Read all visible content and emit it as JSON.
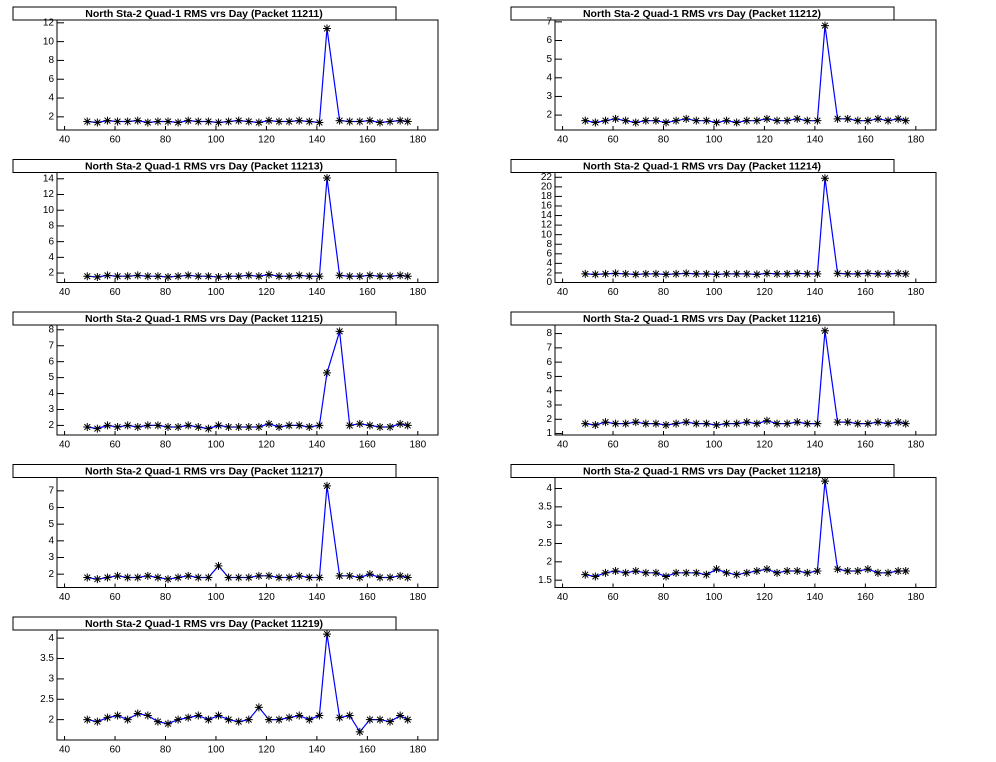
{
  "chart_data": [
    {
      "type": "line",
      "title": "North Sta-2 Quad-1 RMS vrs Day (Packet 11211)",
      "color": "#0000ff",
      "marker_color": "#000000",
      "x": [
        49,
        53,
        57,
        61,
        65,
        69,
        73,
        77,
        81,
        85,
        89,
        93,
        97,
        101,
        105,
        109,
        113,
        117,
        121,
        125,
        129,
        133,
        137,
        141,
        144,
        149,
        153,
        157,
        161,
        165,
        169,
        173,
        176
      ],
      "values": [
        1.5,
        1.4,
        1.6,
        1.5,
        1.5,
        1.6,
        1.4,
        1.5,
        1.5,
        1.4,
        1.6,
        1.5,
        1.5,
        1.4,
        1.5,
        1.6,
        1.5,
        1.4,
        1.6,
        1.5,
        1.5,
        1.6,
        1.5,
        1.4,
        11.4,
        1.6,
        1.5,
        1.5,
        1.6,
        1.4,
        1.5,
        1.6,
        1.5
      ],
      "xlim": [
        37,
        188
      ],
      "ylim": [
        0.6,
        12.3
      ],
      "xticks": [
        40,
        60,
        80,
        100,
        120,
        140,
        160,
        180
      ],
      "yticks": [
        2,
        4,
        6,
        8,
        10,
        12
      ]
    },
    {
      "type": "line",
      "title": "North Sta-2 Quad-1 RMS vrs Day (Packet 11212)",
      "color": "#0000ff",
      "marker_color": "#000000",
      "x": [
        49,
        53,
        57,
        61,
        65,
        69,
        73,
        77,
        81,
        85,
        89,
        93,
        97,
        101,
        105,
        109,
        113,
        117,
        121,
        125,
        129,
        133,
        137,
        141,
        144,
        149,
        153,
        157,
        161,
        165,
        169,
        173,
        176
      ],
      "values": [
        1.7,
        1.6,
        1.7,
        1.8,
        1.7,
        1.6,
        1.7,
        1.7,
        1.6,
        1.7,
        1.8,
        1.7,
        1.7,
        1.6,
        1.7,
        1.6,
        1.7,
        1.7,
        1.8,
        1.7,
        1.7,
        1.8,
        1.7,
        1.7,
        6.8,
        1.8,
        1.8,
        1.7,
        1.7,
        1.8,
        1.7,
        1.8,
        1.7
      ],
      "xlim": [
        37,
        188
      ],
      "ylim": [
        1.2,
        7.1
      ],
      "xticks": [
        40,
        60,
        80,
        100,
        120,
        140,
        160,
        180
      ],
      "yticks": [
        2,
        3,
        4,
        5,
        6,
        7
      ]
    },
    {
      "type": "line",
      "title": "North Sta-2 Quad-1 RMS vrs Day (Packet 11213)",
      "color": "#0000ff",
      "marker_color": "#000000",
      "x": [
        49,
        53,
        57,
        61,
        65,
        69,
        73,
        77,
        81,
        85,
        89,
        93,
        97,
        101,
        105,
        109,
        113,
        117,
        121,
        125,
        129,
        133,
        137,
        141,
        144,
        149,
        153,
        157,
        161,
        165,
        169,
        173,
        176
      ],
      "values": [
        1.6,
        1.5,
        1.7,
        1.6,
        1.6,
        1.7,
        1.6,
        1.6,
        1.5,
        1.6,
        1.7,
        1.6,
        1.6,
        1.5,
        1.6,
        1.6,
        1.7,
        1.6,
        1.8,
        1.6,
        1.6,
        1.7,
        1.6,
        1.6,
        14.1,
        1.7,
        1.6,
        1.6,
        1.7,
        1.6,
        1.6,
        1.7,
        1.6
      ],
      "xlim": [
        37,
        188
      ],
      "ylim": [
        0.8,
        14.8
      ],
      "xticks": [
        40,
        60,
        80,
        100,
        120,
        140,
        160,
        180
      ],
      "yticks": [
        2,
        4,
        6,
        8,
        10,
        12,
        14
      ]
    },
    {
      "type": "line",
      "title": "North Sta-2 Quad-1 RMS vrs Day (Packet 11214)",
      "color": "#0000ff",
      "marker_color": "#000000",
      "x": [
        49,
        53,
        57,
        61,
        65,
        69,
        73,
        77,
        81,
        85,
        89,
        93,
        97,
        101,
        105,
        109,
        113,
        117,
        121,
        125,
        129,
        133,
        137,
        141,
        144,
        149,
        153,
        157,
        161,
        165,
        169,
        173,
        176
      ],
      "values": [
        1.8,
        1.7,
        1.8,
        1.9,
        1.8,
        1.7,
        1.8,
        1.8,
        1.7,
        1.8,
        1.9,
        1.8,
        1.8,
        1.7,
        1.8,
        1.8,
        1.8,
        1.7,
        1.9,
        1.8,
        1.8,
        1.9,
        1.8,
        1.8,
        21.8,
        1.9,
        1.8,
        1.8,
        1.9,
        1.8,
        1.8,
        1.9,
        1.8
      ],
      "xlim": [
        37,
        188
      ],
      "ylim": [
        0,
        23
      ],
      "xticks": [
        40,
        60,
        80,
        100,
        120,
        140,
        160,
        180
      ],
      "yticks": [
        0,
        2,
        4,
        6,
        8,
        10,
        12,
        14,
        16,
        18,
        20,
        22
      ]
    },
    {
      "type": "line",
      "title": "North Sta-2 Quad-1 RMS vrs Day (Packet 11215)",
      "color": "#0000ff",
      "marker_color": "#000000",
      "x": [
        49,
        53,
        57,
        61,
        65,
        69,
        73,
        77,
        81,
        85,
        89,
        93,
        97,
        101,
        105,
        109,
        113,
        117,
        121,
        125,
        129,
        133,
        137,
        141,
        144,
        149,
        153,
        157,
        161,
        165,
        169,
        173,
        176
      ],
      "values": [
        1.9,
        1.8,
        2.0,
        1.9,
        2.0,
        1.9,
        2.0,
        2.0,
        1.9,
        1.9,
        2.0,
        1.9,
        1.8,
        2.0,
        1.9,
        1.9,
        1.9,
        1.9,
        2.1,
        1.9,
        2.0,
        2.0,
        1.9,
        2.0,
        5.3,
        7.9,
        2.0,
        2.1,
        2.0,
        1.9,
        1.9,
        2.1,
        2.0
      ],
      "xlim": [
        37,
        188
      ],
      "ylim": [
        1.4,
        8.3
      ],
      "xticks": [
        40,
        60,
        80,
        100,
        120,
        140,
        160,
        180
      ],
      "yticks": [
        2,
        3,
        4,
        5,
        6,
        7,
        8
      ]
    },
    {
      "type": "line",
      "title": "North Sta-2 Quad-1 RMS vrs Day (Packet 11216)",
      "color": "#0000ff",
      "marker_color": "#000000",
      "x": [
        49,
        53,
        57,
        61,
        65,
        69,
        73,
        77,
        81,
        85,
        89,
        93,
        97,
        101,
        105,
        109,
        113,
        117,
        121,
        125,
        129,
        133,
        137,
        141,
        144,
        149,
        153,
        157,
        161,
        165,
        169,
        173,
        176
      ],
      "values": [
        1.7,
        1.6,
        1.8,
        1.7,
        1.7,
        1.8,
        1.7,
        1.7,
        1.6,
        1.7,
        1.8,
        1.7,
        1.7,
        1.6,
        1.7,
        1.7,
        1.8,
        1.7,
        1.9,
        1.7,
        1.7,
        1.8,
        1.7,
        1.7,
        8.2,
        1.8,
        1.8,
        1.7,
        1.7,
        1.8,
        1.7,
        1.8,
        1.7
      ],
      "xlim": [
        37,
        188
      ],
      "ylim": [
        0.9,
        8.6
      ],
      "xticks": [
        40,
        60,
        80,
        100,
        120,
        140,
        160,
        180
      ],
      "yticks": [
        1,
        2,
        3,
        4,
        5,
        6,
        7,
        8
      ]
    },
    {
      "type": "line",
      "title": "North Sta-2 Quad-1 RMS vrs Day (Packet 11217)",
      "color": "#0000ff",
      "marker_color": "#000000",
      "x": [
        49,
        53,
        57,
        61,
        65,
        69,
        73,
        77,
        81,
        85,
        89,
        93,
        97,
        101,
        105,
        109,
        113,
        117,
        121,
        125,
        129,
        133,
        137,
        141,
        144,
        149,
        153,
        157,
        161,
        165,
        169,
        173,
        176
      ],
      "values": [
        1.8,
        1.7,
        1.8,
        1.9,
        1.8,
        1.8,
        1.9,
        1.8,
        1.7,
        1.8,
        1.9,
        1.8,
        1.8,
        2.5,
        1.8,
        1.8,
        1.8,
        1.9,
        1.9,
        1.8,
        1.8,
        1.9,
        1.8,
        1.8,
        7.3,
        1.9,
        1.9,
        1.8,
        2.0,
        1.8,
        1.8,
        1.9,
        1.8
      ],
      "xlim": [
        37,
        188
      ],
      "ylim": [
        1.2,
        7.8
      ],
      "xticks": [
        40,
        60,
        80,
        100,
        120,
        140,
        160,
        180
      ],
      "yticks": [
        2,
        3,
        4,
        5,
        6,
        7
      ]
    },
    {
      "type": "line",
      "title": "North Sta-2 Quad-1 RMS vrs Day (Packet 11218)",
      "color": "#0000ff",
      "marker_color": "#000000",
      "x": [
        49,
        53,
        57,
        61,
        65,
        69,
        73,
        77,
        81,
        85,
        89,
        93,
        97,
        101,
        105,
        109,
        113,
        117,
        121,
        125,
        129,
        133,
        137,
        141,
        144,
        149,
        153,
        157,
        161,
        165,
        169,
        173,
        176
      ],
      "values": [
        1.65,
        1.6,
        1.7,
        1.75,
        1.7,
        1.75,
        1.7,
        1.7,
        1.6,
        1.7,
        1.7,
        1.7,
        1.65,
        1.8,
        1.7,
        1.65,
        1.7,
        1.75,
        1.8,
        1.7,
        1.75,
        1.75,
        1.7,
        1.75,
        4.2,
        1.8,
        1.75,
        1.75,
        1.8,
        1.7,
        1.7,
        1.75,
        1.75
      ],
      "xlim": [
        37,
        188
      ],
      "ylim": [
        1.3,
        4.3
      ],
      "xticks": [
        40,
        60,
        80,
        100,
        120,
        140,
        160,
        180
      ],
      "yticks": [
        1.5,
        2,
        2.5,
        3,
        3.5,
        4
      ]
    },
    {
      "type": "line",
      "title": "North Sta-2 Quad-1 RMS vrs Day (Packet 11219)",
      "color": "#0000ff",
      "marker_color": "#000000",
      "x": [
        49,
        53,
        57,
        61,
        65,
        69,
        73,
        77,
        81,
        85,
        89,
        93,
        97,
        101,
        105,
        109,
        113,
        117,
        121,
        125,
        129,
        133,
        137,
        141,
        144,
        149,
        153,
        157,
        161,
        165,
        169,
        173,
        176
      ],
      "values": [
        2.0,
        1.95,
        2.05,
        2.1,
        2.0,
        2.15,
        2.1,
        1.95,
        1.9,
        2.0,
        2.05,
        2.1,
        2.0,
        2.1,
        2.0,
        1.95,
        2.0,
        2.3,
        2.0,
        2.0,
        2.05,
        2.1,
        2.0,
        2.1,
        4.1,
        2.05,
        2.1,
        1.7,
        2.0,
        2.0,
        1.95,
        2.1,
        2.0
      ],
      "xlim": [
        37,
        188
      ],
      "ylim": [
        1.5,
        4.2
      ],
      "xticks": [
        40,
        60,
        80,
        100,
        120,
        140,
        160,
        180
      ],
      "yticks": [
        2,
        2.5,
        3,
        3.5,
        4
      ]
    }
  ]
}
